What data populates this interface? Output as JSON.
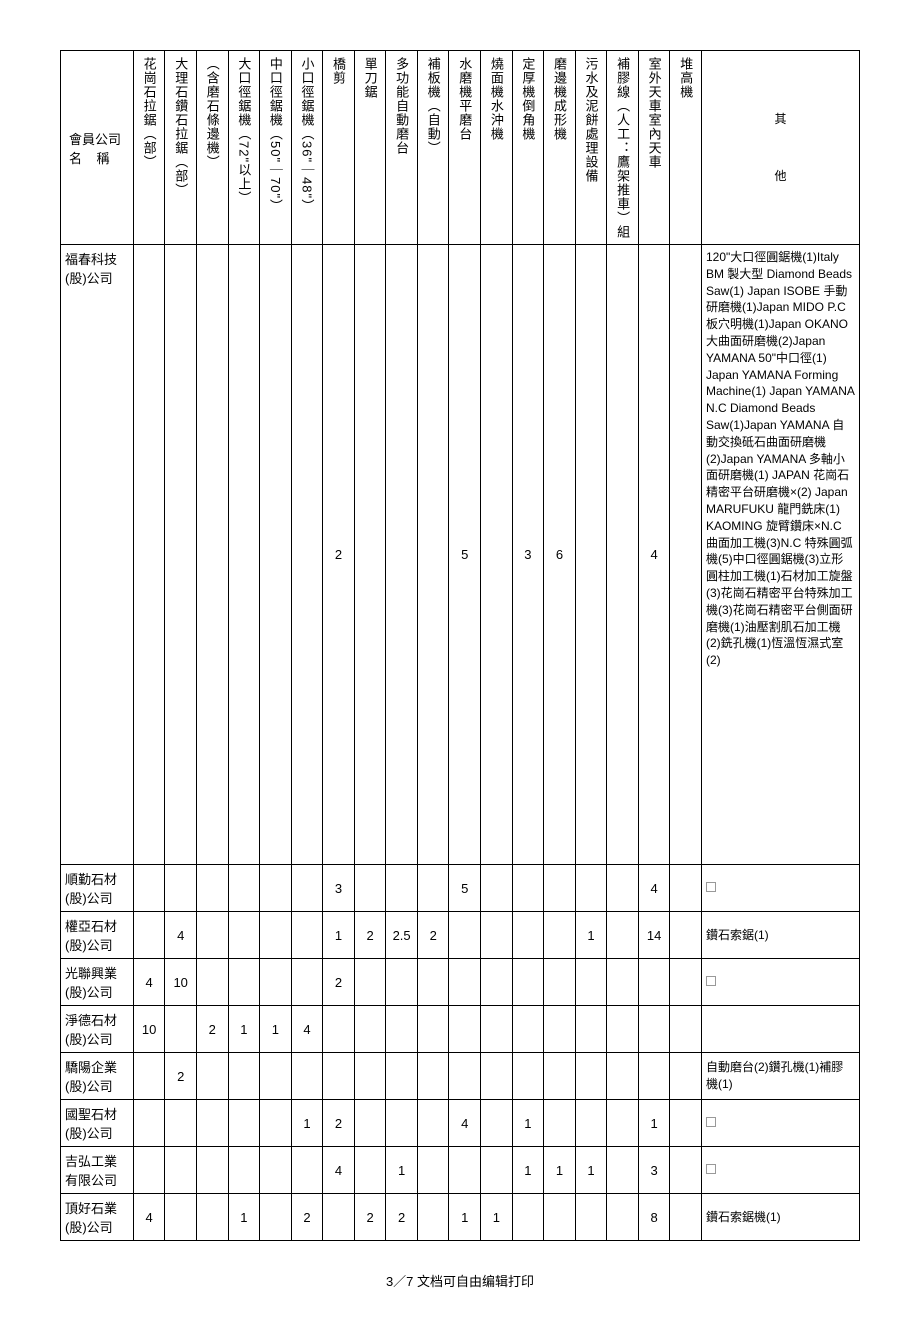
{
  "headers": {
    "company": {
      "line1": "會員公司",
      "line2_prefix": "名",
      "line2_suffix": "稱"
    },
    "cols": [
      "花崗石拉鋸︵部︶",
      "大理石鑽石拉鋸︵部︶",
      "︵含磨石條邊機︶",
      "大口徑鋸機︵72\"以上︶",
      "中口徑鋸機︵50\"｜70\"︶",
      "小口徑鋸機︵36\"｜48\"︶",
      "橋剪",
      "單刀鋸",
      "多功能自動磨台",
      "補板機︵自動︶",
      "水磨機平磨台",
      "燒面機水沖機",
      "定厚機倒角機",
      "磨邊機成形機",
      "污水及泥餅處理設備",
      "補膠線︵人工：鷹架推車︶組",
      "室外天車室內天車",
      "堆高機"
    ],
    "other": {
      "line1": "其",
      "line2": "他"
    }
  },
  "rows": [
    {
      "company": "福春科技(股)公司",
      "tall": true,
      "cells": [
        "",
        "",
        "",
        "",
        "",
        "",
        "2",
        "",
        "",
        "",
        "5",
        "",
        "3",
        "6",
        "",
        "",
        "4",
        ""
      ],
      "other_text": "120\"大口徑圓鋸機(1)Italy BM 製大型 Diamond Beads Saw(1) Japan ISOBE 手動研磨機(1)Japan MIDO P.C 板穴明機(1)Japan OKANO 大曲面研磨機(2)Japan YAMANA 50\"中口徑(1)\nJapan YAMANA Forming Machine(1)\nJapan YAMANA N.C Diamond Beads Saw(1)Japan YAMANA 自動交換砥石曲面研磨機(2)Japan YAMANA 多軸小面研磨機(1) JAPAN 花崗石精密平台研磨機×(2) Japan MARUFUKU 龍門銑床(1) KAOMING 旋臂鑽床×N.C 曲面加工機(3)N.C 特殊圓弧機(5)中口徑圓鋸機(3)立形圓柱加工機(1)石材加工旋盤(3)花崗石精密平台特殊加工機(3)花崗石精密平台側面研磨機(1)油壓割肌石加工機(2)銑孔機(1)恆溫恆濕式室(2)"
    },
    {
      "company": "順勤石材(股)公司",
      "cells": [
        "",
        "",
        "",
        "",
        "",
        "",
        "3",
        "",
        "",
        "",
        "5",
        "",
        "",
        "",
        "",
        "",
        "4",
        ""
      ],
      "other_checkbox": true
    },
    {
      "company": "權亞石材(股)公司",
      "cells": [
        "",
        "4",
        "",
        "",
        "",
        "",
        "1",
        "2",
        "2.5",
        "2",
        "",
        "",
        "",
        "",
        "1",
        "",
        "14",
        ""
      ],
      "other_text": "鑽石索鋸(1)"
    },
    {
      "company": "光聯興業(股)公司",
      "cells": [
        "4",
        "10",
        "",
        "",
        "",
        "",
        "2",
        "",
        "",
        "",
        "",
        "",
        "",
        "",
        "",
        "",
        "",
        ""
      ],
      "other_checkbox": true
    },
    {
      "company": "淨德石材(股)公司",
      "cells": [
        "10",
        "",
        "2",
        "1",
        "1",
        "4",
        "",
        "",
        "",
        "",
        "",
        "",
        "",
        "",
        "",
        "",
        "",
        ""
      ]
    },
    {
      "company": "驕陽企業(股)公司",
      "cells": [
        "",
        "2",
        "",
        "",
        "",
        "",
        "",
        "",
        "",
        "",
        "",
        "",
        "",
        "",
        "",
        "",
        "",
        ""
      ],
      "other_text": "自動磨台(2)鑽孔機(1)補膠機(1)"
    },
    {
      "company": "國聖石材(股)公司",
      "cells": [
        "",
        "",
        "",
        "",
        "",
        "1",
        "2",
        "",
        "",
        "",
        "4",
        "",
        "1",
        "",
        "",
        "",
        "1",
        ""
      ],
      "other_checkbox": true
    },
    {
      "company": "吉弘工業有限公司",
      "cells": [
        "",
        "",
        "",
        "",
        "",
        "",
        "4",
        "",
        "1",
        "",
        "",
        "",
        "1",
        "1",
        "1",
        "",
        "3",
        ""
      ],
      "other_checkbox": true
    },
    {
      "company": "頂好石業(股)公司",
      "cells": [
        "4",
        "",
        "",
        "1",
        "",
        "2",
        "",
        "2",
        "2",
        "",
        "1",
        "1",
        "",
        "",
        "",
        "",
        "8",
        ""
      ],
      "other_text": "鑽石索鋸機(1)"
    }
  ],
  "footer": "3／7 文档可自由编辑打印"
}
